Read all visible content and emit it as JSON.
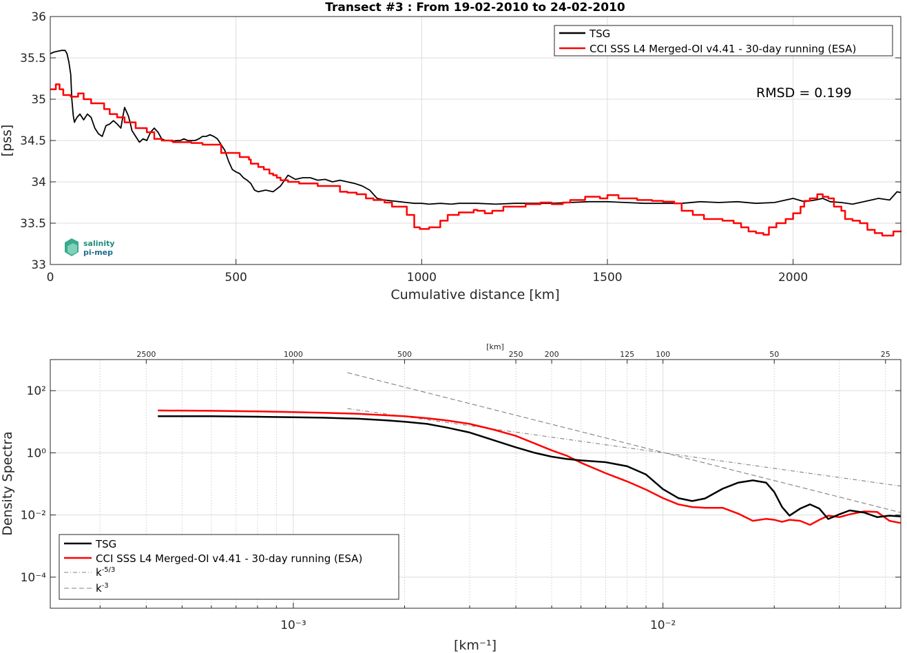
{
  "chart_data": [
    {
      "type": "line",
      "title": "Transect #3 : From 19-02-2010 to 24-02-2010",
      "xlabel": "Cumulative distance [km]",
      "ylabel": "[pss]",
      "xlim": [
        0,
        2290
      ],
      "ylim": [
        33,
        36
      ],
      "xticks": [
        0,
        500,
        1000,
        1500,
        2000
      ],
      "yticks": [
        33,
        33.5,
        34,
        34.5,
        35,
        35.5,
        36
      ],
      "grid": true,
      "legend": "top-right",
      "annotation": "RMSD = 0.199",
      "logo": "salinity pi-mep",
      "series": [
        {
          "name": "TSG",
          "color": "#000000",
          "step": false,
          "x": [
            0,
            10,
            20,
            30,
            40,
            45,
            50,
            55,
            58,
            62,
            65,
            68,
            72,
            80,
            90,
            100,
            110,
            120,
            130,
            140,
            150,
            160,
            170,
            180,
            190,
            195,
            200,
            205,
            210,
            215,
            220,
            230,
            240,
            250,
            260,
            270,
            280,
            290,
            300,
            310,
            320,
            330,
            340,
            350,
            360,
            370,
            380,
            390,
            400,
            410,
            420,
            430,
            440,
            450,
            460,
            470,
            480,
            490,
            500,
            510,
            520,
            530,
            540,
            550,
            560,
            580,
            600,
            620,
            640,
            660,
            680,
            700,
            720,
            740,
            760,
            780,
            800,
            820,
            840,
            860,
            880,
            900,
            920,
            940,
            960,
            980,
            1000,
            1020,
            1050,
            1080,
            1100,
            1150,
            1200,
            1250,
            1300,
            1350,
            1400,
            1450,
            1500,
            1550,
            1600,
            1650,
            1700,
            1750,
            1800,
            1850,
            1900,
            1950,
            2000,
            2030,
            2060,
            2080,
            2100,
            2130,
            2160,
            2200,
            2230,
            2260,
            2280,
            2290
          ],
          "y": [
            35.55,
            35.57,
            35.58,
            35.59,
            35.59,
            35.55,
            35.45,
            35.3,
            35.0,
            34.8,
            34.72,
            34.75,
            34.78,
            34.82,
            34.75,
            34.82,
            34.78,
            34.65,
            34.58,
            34.55,
            34.68,
            34.7,
            34.74,
            34.7,
            34.65,
            34.78,
            34.9,
            34.85,
            34.8,
            34.72,
            34.62,
            34.55,
            34.48,
            34.52,
            34.5,
            34.6,
            34.65,
            34.6,
            34.52,
            34.5,
            34.5,
            34.49,
            34.5,
            34.5,
            34.52,
            34.5,
            34.5,
            34.5,
            34.52,
            34.55,
            34.55,
            34.57,
            34.55,
            34.52,
            34.45,
            34.38,
            34.25,
            34.15,
            34.12,
            34.1,
            34.05,
            34.02,
            33.98,
            33.9,
            33.88,
            33.9,
            33.88,
            33.95,
            34.08,
            34.03,
            34.05,
            34.05,
            34.02,
            34.03,
            34.0,
            34.02,
            34.0,
            33.98,
            33.95,
            33.9,
            33.8,
            33.78,
            33.77,
            33.76,
            33.75,
            33.74,
            33.74,
            33.73,
            33.74,
            33.73,
            33.74,
            33.74,
            33.73,
            33.74,
            33.74,
            33.74,
            33.75,
            33.76,
            33.76,
            33.75,
            33.74,
            33.74,
            33.74,
            33.76,
            33.75,
            33.76,
            33.74,
            33.75,
            33.8,
            33.76,
            33.78,
            33.8,
            33.76,
            33.75,
            33.73,
            33.77,
            33.8,
            33.78,
            33.88,
            33.87
          ]
        },
        {
          "name": "CCI SSS L4 Merged-OI v4.41 - 30-day running (ESA)",
          "color": "#ff0000",
          "step": true,
          "x": [
            0,
            15,
            25,
            35,
            55,
            75,
            90,
            110,
            145,
            160,
            180,
            200,
            230,
            260,
            280,
            300,
            330,
            350,
            380,
            410,
            460,
            510,
            535,
            540,
            560,
            575,
            590,
            600,
            610,
            620,
            640,
            660,
            670,
            690,
            710,
            720,
            780,
            800,
            825,
            850,
            870,
            880,
            900,
            920,
            960,
            980,
            995,
            1020,
            1050,
            1070,
            1100,
            1140,
            1150,
            1170,
            1190,
            1220,
            1280,
            1290,
            1320,
            1350,
            1380,
            1400,
            1440,
            1480,
            1500,
            1530,
            1550,
            1580,
            1620,
            1650,
            1680,
            1700,
            1730,
            1760,
            1810,
            1840,
            1860,
            1880,
            1900,
            1920,
            1935,
            1955,
            1980,
            2000,
            2020,
            2030,
            2045,
            2065,
            2080,
            2095,
            2110,
            2130,
            2140,
            2160,
            2180,
            2200,
            2220,
            2240,
            2270,
            2290
          ],
          "y": [
            35.12,
            35.18,
            35.12,
            35.05,
            35.03,
            35.07,
            35.0,
            34.95,
            34.88,
            34.82,
            34.78,
            34.72,
            34.65,
            34.6,
            34.52,
            34.5,
            34.48,
            34.48,
            34.47,
            34.45,
            34.35,
            34.3,
            34.27,
            34.22,
            34.18,
            34.15,
            34.1,
            34.08,
            34.05,
            34.02,
            34.0,
            34.0,
            33.98,
            33.98,
            33.98,
            33.95,
            33.88,
            33.87,
            33.85,
            33.8,
            33.78,
            33.78,
            33.75,
            33.7,
            33.6,
            33.45,
            33.43,
            33.45,
            33.53,
            33.6,
            33.63,
            33.66,
            33.65,
            33.62,
            33.65,
            33.7,
            33.73,
            33.73,
            33.75,
            33.73,
            33.75,
            33.78,
            33.82,
            33.8,
            33.84,
            33.8,
            33.8,
            33.78,
            33.77,
            33.76,
            33.74,
            33.65,
            33.6,
            33.55,
            33.53,
            33.5,
            33.45,
            33.4,
            33.38,
            33.36,
            33.45,
            33.5,
            33.55,
            33.62,
            33.7,
            33.77,
            33.8,
            33.85,
            33.82,
            33.8,
            33.7,
            33.65,
            33.55,
            33.53,
            33.5,
            33.42,
            33.38,
            33.35,
            33.4,
            33.41
          ]
        }
      ]
    },
    {
      "type": "line",
      "log_x": true,
      "log_y": true,
      "xlabel": "[km⁻¹]",
      "ylabel": "Density Spectra",
      "top_axis_label": "[km]",
      "xlim": [
        0.00022,
        0.044
      ],
      "ylim": [
        1e-05,
        1000
      ],
      "xticks": [
        0.001,
        0.01
      ],
      "xtick_labels": [
        "10⁻³",
        "10⁻²"
      ],
      "yticks": [
        0.0001,
        0.01,
        1,
        100
      ],
      "ytick_labels": [
        "10⁻⁴",
        "10⁻²",
        "10⁰",
        "10²"
      ],
      "top_ticks_km": [
        25,
        50,
        100,
        125,
        200,
        250,
        500,
        1000,
        2500
      ],
      "grid": true,
      "legend": "bottom-left",
      "series": [
        {
          "name": "TSG",
          "color": "#000000",
          "style": "solid",
          "x": [
            0.00043,
            0.0006,
            0.0008,
            0.001,
            0.0012,
            0.0015,
            0.0018,
            0.002,
            0.0023,
            0.0026,
            0.003,
            0.0035,
            0.004,
            0.0045,
            0.005,
            0.0055,
            0.006,
            0.007,
            0.008,
            0.009,
            0.01,
            0.011,
            0.012,
            0.013,
            0.0145,
            0.016,
            0.0175,
            0.019,
            0.02,
            0.021,
            0.022,
            0.0235,
            0.025,
            0.0265,
            0.028,
            0.03,
            0.032,
            0.035,
            0.038,
            0.041,
            0.044
          ],
          "y": [
            15,
            15,
            14.5,
            14,
            13.5,
            12.5,
            11,
            10,
            8.5,
            6.5,
            4.5,
            2.5,
            1.5,
            1.0,
            0.75,
            0.63,
            0.57,
            0.5,
            0.37,
            0.2,
            0.068,
            0.035,
            0.028,
            0.034,
            0.07,
            0.11,
            0.13,
            0.11,
            0.055,
            0.018,
            0.0095,
            0.016,
            0.022,
            0.016,
            0.0074,
            0.0105,
            0.014,
            0.012,
            0.0085,
            0.0095,
            0.009
          ]
        },
        {
          "name": "CCI SSS L4 Merged-OI v4.41 - 30-day running (ESA)",
          "color": "#ff0000",
          "style": "solid",
          "x": [
            0.00043,
            0.0006,
            0.0008,
            0.001,
            0.0012,
            0.0015,
            0.0018,
            0.002,
            0.0023,
            0.0026,
            0.003,
            0.0035,
            0.004,
            0.0045,
            0.005,
            0.0055,
            0.006,
            0.007,
            0.008,
            0.009,
            0.01,
            0.011,
            0.012,
            0.013,
            0.0145,
            0.016,
            0.0175,
            0.019,
            0.02,
            0.021,
            0.022,
            0.0235,
            0.025,
            0.0265,
            0.028,
            0.03,
            0.032,
            0.035,
            0.038,
            0.041,
            0.044
          ],
          "y": [
            23,
            22.5,
            21.5,
            20.5,
            19.5,
            18,
            16,
            15,
            13,
            11,
            8.5,
            5.5,
            3.5,
            2.0,
            1.2,
            0.8,
            0.48,
            0.22,
            0.12,
            0.065,
            0.035,
            0.022,
            0.018,
            0.017,
            0.017,
            0.011,
            0.0065,
            0.0075,
            0.007,
            0.006,
            0.007,
            0.0065,
            0.0048,
            0.007,
            0.0095,
            0.0085,
            0.0105,
            0.013,
            0.0125,
            0.0065,
            0.0055
          ]
        },
        {
          "name": "k⁻⁵ᐟ³",
          "color": "#808080",
          "style": "dashdot",
          "x": [
            0.0014,
            0.044
          ],
          "y": [
            26.6,
            0.085
          ]
        },
        {
          "name": "k⁻³",
          "color": "#808080",
          "style": "dashed",
          "x": [
            0.0014,
            0.044
          ],
          "y": [
            380,
            0.012
          ]
        }
      ]
    }
  ]
}
